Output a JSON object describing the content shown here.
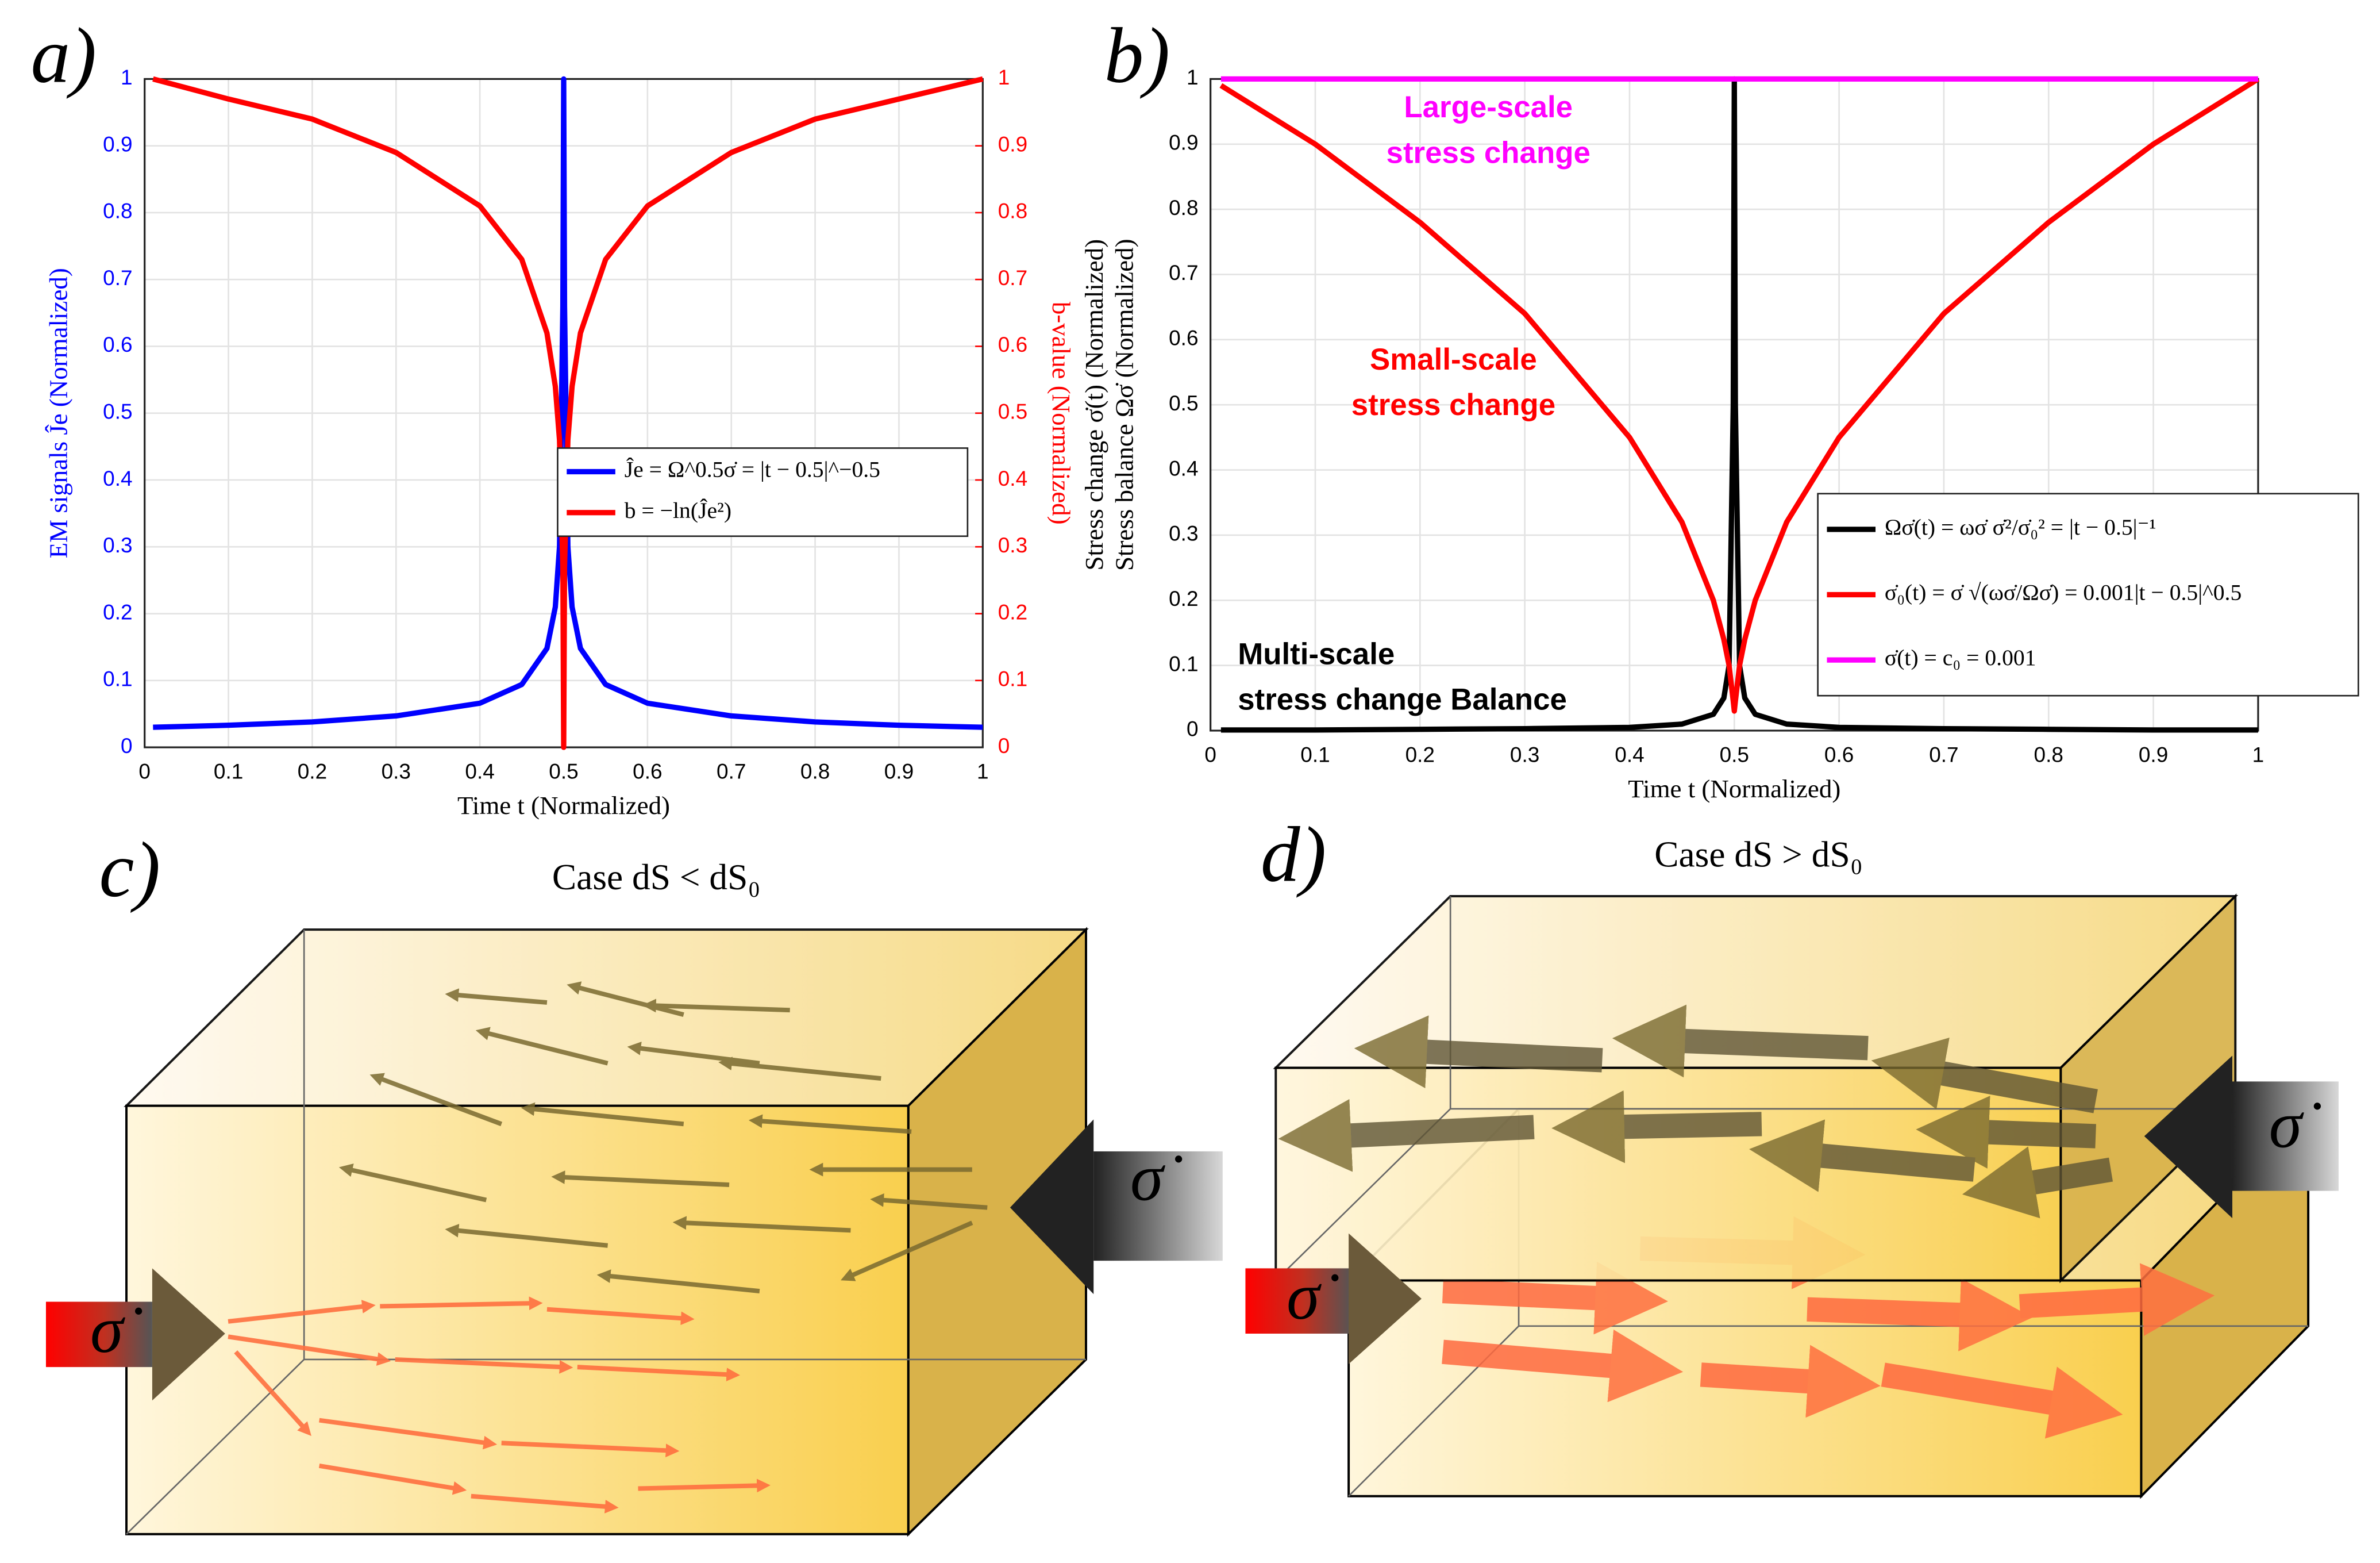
{
  "panels": {
    "a": "a)",
    "b": "b)",
    "c": "c)",
    "d": "d)"
  },
  "illustrations": {
    "c": {
      "caption": "Case dS < dS₀",
      "stress_label": "σ̇"
    },
    "d": {
      "caption": "Case dS > dS₀",
      "stress_label": "σ̇"
    }
  },
  "chart_data": [
    {
      "type": "line",
      "xlabel": "Time t (Normalized)",
      "ylabel": [
        "EM signals Ĵe (Normalized)"
      ],
      "y2label": "b-value (Normalized)",
      "ycolor": "#0000ff",
      "y2color": "#ff0000",
      "x": [
        0.01,
        0.1,
        0.2,
        0.3,
        0.4,
        0.45,
        0.48,
        0.49,
        0.495,
        0.499,
        0.5,
        0.501,
        0.505,
        0.51,
        0.52,
        0.55,
        0.6,
        0.7,
        0.8,
        0.9,
        1
      ],
      "xlim": [
        0,
        1
      ],
      "xticks": [
        0,
        0.1,
        0.2,
        0.3,
        0.4,
        0.5,
        0.6,
        0.7,
        0.8,
        0.9,
        1
      ],
      "ylim": [
        0,
        1
      ],
      "yticks": [
        0,
        0.1,
        0.2,
        0.3,
        0.4,
        0.5,
        0.6,
        0.7,
        0.8,
        0.9,
        1
      ],
      "y2lim": [
        0,
        1
      ],
      "y2ticks": [
        0,
        0.1,
        0.2,
        0.3,
        0.4,
        0.5,
        0.6,
        0.7,
        0.8,
        0.9,
        1
      ],
      "grid": true,
      "series": [
        {
          "name": "Ĵe = Ω^0.5σ̇ = |t − 0.5|^−0.5",
          "color": "#0000ff",
          "values": [
            0.03,
            0.033,
            0.038,
            0.047,
            0.066,
            0.094,
            0.148,
            0.21,
            0.3,
            0.66,
            1,
            0.66,
            0.3,
            0.21,
            0.148,
            0.094,
            0.066,
            0.047,
            0.038,
            0.033,
            0.03
          ]
        },
        {
          "name": "b = −ln(Ĵe²)",
          "color": "#ff0000",
          "axis": "y2",
          "values": [
            1,
            0.97,
            0.94,
            0.89,
            0.81,
            0.73,
            0.62,
            0.54,
            0.46,
            0.27,
            0,
            0.27,
            0.46,
            0.54,
            0.62,
            0.73,
            0.81,
            0.89,
            0.94,
            0.97,
            1
          ]
        }
      ]
    },
    {
      "type": "line",
      "xlabel": "Time t (Normalized)",
      "ylabel": [
        "Stress change σ̇(t) (Normalized)",
        "Stress balance Ωσ̇ (Normalized)"
      ],
      "x": [
        0.01,
        0.1,
        0.2,
        0.3,
        0.4,
        0.45,
        0.48,
        0.49,
        0.495,
        0.499,
        0.5,
        0.501,
        0.505,
        0.51,
        0.52,
        0.55,
        0.6,
        0.7,
        0.8,
        0.9,
        1
      ],
      "xlim": [
        0,
        1
      ],
      "xticks": [
        0,
        0.1,
        0.2,
        0.3,
        0.4,
        0.5,
        0.6,
        0.7,
        0.8,
        0.9,
        1
      ],
      "ylim": [
        0,
        1
      ],
      "yticks": [
        0,
        0.1,
        0.2,
        0.3,
        0.4,
        0.5,
        0.6,
        0.7,
        0.8,
        0.9,
        1
      ],
      "grid": true,
      "series": [
        {
          "name": "Ωσ̇(t) = ωσ̇ σ̇²/σ̇₀² = |t − 0.5|⁻¹",
          "color": "#000000",
          "values": [
            0.001,
            0.001,
            0.002,
            0.003,
            0.005,
            0.01,
            0.025,
            0.05,
            0.1,
            0.5,
            1,
            0.5,
            0.1,
            0.05,
            0.025,
            0.01,
            0.005,
            0.003,
            0.002,
            0.001,
            0.001
          ]
        },
        {
          "name": "σ̇₀(t) = σ̇ √(ωσ̇/Ωσ̇) = 0.001|t − 0.5|^0.5",
          "color": "#ff0000",
          "values": [
            0.99,
            0.9,
            0.78,
            0.64,
            0.45,
            0.32,
            0.2,
            0.14,
            0.1,
            0.045,
            0.03,
            0.045,
            0.1,
            0.14,
            0.2,
            0.32,
            0.45,
            0.64,
            0.78,
            0.9,
            1
          ]
        },
        {
          "name": "σ̇(t) = c₀ = 0.001",
          "color": "#ff00ff",
          "values": [
            1,
            1,
            1,
            1,
            1,
            1,
            1,
            1,
            1,
            1,
            1,
            1,
            1,
            1,
            1,
            1,
            1,
            1,
            1,
            1,
            1
          ]
        }
      ],
      "annotations": [
        {
          "lines": [
            "Large-scale",
            "stress change"
          ],
          "color": "#ff00ff"
        },
        {
          "lines": [
            "Small-scale",
            "stress change"
          ],
          "color": "#ff0000"
        },
        {
          "lines": [
            "Multi-scale",
            "stress change Balance"
          ],
          "color": "#000000"
        }
      ]
    }
  ]
}
